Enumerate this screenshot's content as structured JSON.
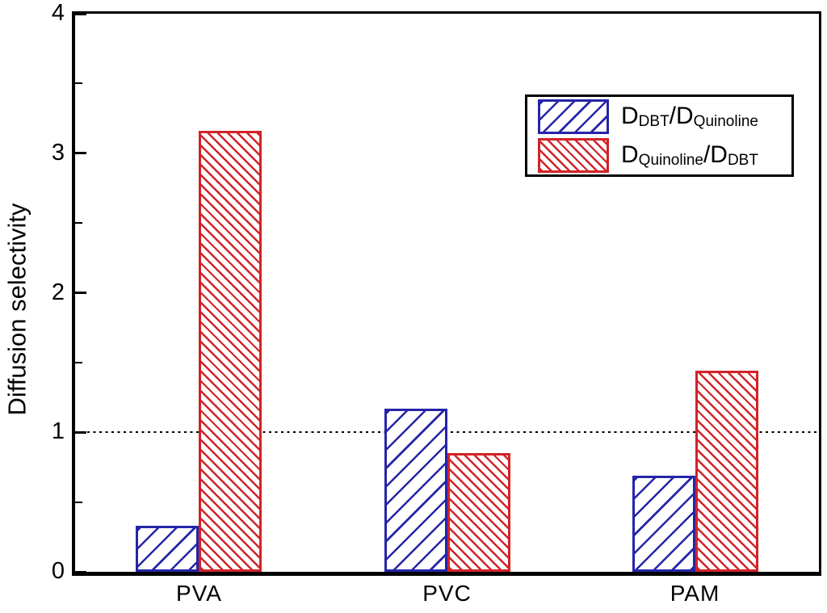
{
  "figure": {
    "title": "",
    "ylabel": "Diffusion selectivity"
  },
  "chart_data": {
    "type": "bar",
    "title": "",
    "xlabel": "",
    "ylabel": "Diffusion selectivity",
    "categories": [
      "PVA",
      "PVC",
      "PAM"
    ],
    "series": [
      {
        "name": "D_DBT/D_Quinoline",
        "color": "#2525a8",
        "hatch": "/",
        "values": [
          0.33,
          1.17,
          0.69
        ]
      },
      {
        "name": "D_Quinoline/D_DBT",
        "color": "#d12328",
        "hatch": "\\",
        "values": [
          3.16,
          0.85,
          1.44
        ]
      }
    ],
    "ylim": [
      0,
      4
    ],
    "yticks_major": [
      0,
      1,
      2,
      3,
      4
    ],
    "ytick_labels": [
      "0",
      "1",
      "2",
      "3",
      "4"
    ],
    "yticks_minor": [
      0.5,
      1.5,
      2.5,
      3.5
    ],
    "ref_line": 1,
    "grid": false,
    "legend_position": "upper-right"
  },
  "legend": {
    "items": [
      {
        "p1": "D",
        "s1": "DBT",
        "p2": "/D",
        "s2": "Quinoline",
        "color": "#2525a8"
      },
      {
        "p1": "D",
        "s1": "Quinoline",
        "p2": "/D",
        "s2": "DBT",
        "color": "#d12328"
      }
    ]
  },
  "colors": {
    "blue_series": "#2525a8",
    "red_series": "#d12328",
    "frame": "#000000",
    "background": "#ffffff"
  }
}
